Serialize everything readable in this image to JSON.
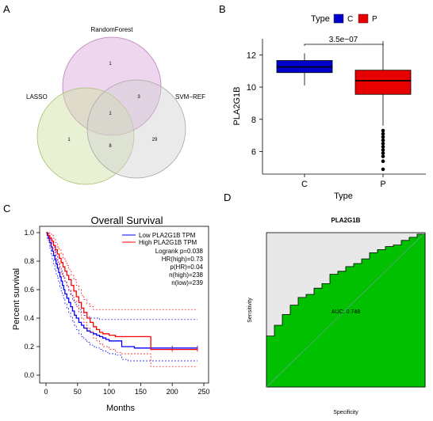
{
  "panels": {
    "A": "A",
    "B": "B",
    "C": "C",
    "D": "D"
  },
  "colors": {
    "rf": "#d9a3d9",
    "lasso": "#cfdfa0",
    "svm": "#d0d0d0",
    "box_c": "#0000cc",
    "box_p": "#e60000",
    "survival_low": "#0000ff",
    "survival_high": "#ff0000",
    "roc_fill": "#00c000",
    "roc_bg": "#e8e8e8"
  },
  "venn": {
    "sets": [
      "RandomForest",
      "LASSO",
      "SVM−REF"
    ],
    "regions": {
      "rf_only": "1",
      "rf_svm": "3",
      "all": "1",
      "lasso_only": "1",
      "lasso_svm": "8",
      "svm_only": "29"
    }
  },
  "chart_data": [
    {
      "panel": "B",
      "type": "box",
      "legend_title": "Type",
      "legend": [
        "C",
        "P"
      ],
      "xlabel": "Type",
      "ylabel": "PLA2G1B",
      "categories": [
        "C",
        "P"
      ],
      "yticks": [
        6,
        8,
        10,
        12
      ],
      "ylim": [
        4.6,
        13
      ],
      "pvalue": "3.5e−07",
      "boxes": [
        {
          "name": "C",
          "whisker_low": 10.1,
          "q1": 10.9,
          "median": 11.25,
          "q3": 11.65,
          "whisker_high": 12.1,
          "outliers": []
        },
        {
          "name": "P",
          "whisker_low": 7.6,
          "q1": 9.55,
          "median": 10.4,
          "q3": 11.05,
          "whisker_high": 12.85,
          "outliers": [
            7.3,
            7.1,
            6.9,
            6.7,
            6.5,
            6.3,
            6.1,
            5.9,
            5.7,
            5.4,
            4.9
          ]
        }
      ]
    },
    {
      "panel": "C",
      "type": "line",
      "title": "Overall Survival",
      "xlabel": "Months",
      "ylabel": "Percent survival",
      "xlim": [
        0,
        250
      ],
      "ylim": [
        0,
        1
      ],
      "xticks": [
        0,
        50,
        100,
        150,
        200,
        250
      ],
      "yticks": [
        0.0,
        0.2,
        0.4,
        0.6,
        0.8,
        1.0
      ],
      "legend": [
        "Low PLA2G1B TPM",
        "High PLA2G1B TPM"
      ],
      "stats": [
        "Logrank p=0.038",
        "HR(high)=0.73",
        "p(HR)=0.04",
        "n(high)=238",
        "n(low)=239"
      ],
      "series": [
        {
          "name": "Low PLA2G1B TPM",
          "x": [
            0,
            2,
            4,
            6,
            8,
            10,
            12,
            14,
            16,
            18,
            20,
            22,
            24,
            26,
            28,
            30,
            33,
            36,
            39,
            42,
            45,
            48,
            52,
            56,
            60,
            65,
            70,
            75,
            80,
            85,
            90,
            95,
            100,
            110,
            120,
            130,
            140,
            150,
            165,
            200,
            240
          ],
          "y": [
            1.0,
            0.98,
            0.96,
            0.93,
            0.9,
            0.87,
            0.84,
            0.81,
            0.78,
            0.75,
            0.72,
            0.69,
            0.66,
            0.63,
            0.6,
            0.57,
            0.54,
            0.51,
            0.48,
            0.45,
            0.42,
            0.4,
            0.37,
            0.35,
            0.33,
            0.31,
            0.3,
            0.29,
            0.28,
            0.27,
            0.26,
            0.25,
            0.24,
            0.24,
            0.2,
            0.2,
            0.19,
            0.19,
            0.19,
            0.19,
            0.19
          ],
          "upper": [
            1.0,
            1.0,
            0.99,
            0.97,
            0.95,
            0.92,
            0.9,
            0.87,
            0.84,
            0.81,
            0.79,
            0.76,
            0.73,
            0.7,
            0.68,
            0.65,
            0.62,
            0.59,
            0.56,
            0.53,
            0.51,
            0.49,
            0.46,
            0.44,
            0.42,
            0.41,
            0.4,
            0.4,
            0.4,
            0.39,
            0.39,
            0.39,
            0.39,
            0.39,
            0.39,
            0.39,
            0.39,
            0.39,
            0.39,
            0.39,
            0.39
          ],
          "lower": [
            1.0,
            0.96,
            0.93,
            0.89,
            0.85,
            0.81,
            0.78,
            0.74,
            0.71,
            0.68,
            0.65,
            0.62,
            0.59,
            0.56,
            0.53,
            0.5,
            0.47,
            0.44,
            0.41,
            0.38,
            0.35,
            0.32,
            0.29,
            0.27,
            0.25,
            0.23,
            0.21,
            0.2,
            0.19,
            0.18,
            0.17,
            0.16,
            0.15,
            0.14,
            0.11,
            0.1,
            0.1,
            0.1,
            0.1,
            0.1,
            0.1
          ]
        },
        {
          "name": "High PLA2G1B TPM",
          "x": [
            0,
            3,
            6,
            9,
            12,
            15,
            18,
            21,
            24,
            27,
            30,
            33,
            36,
            40,
            44,
            48,
            52,
            56,
            60,
            65,
            70,
            75,
            80,
            85,
            90,
            100,
            110,
            120,
            130,
            140,
            150,
            165,
            166,
            200,
            240
          ],
          "y": [
            1.0,
            0.98,
            0.96,
            0.94,
            0.91,
            0.88,
            0.85,
            0.82,
            0.79,
            0.76,
            0.73,
            0.7,
            0.67,
            0.63,
            0.59,
            0.55,
            0.51,
            0.47,
            0.44,
            0.4,
            0.37,
            0.34,
            0.32,
            0.3,
            0.29,
            0.28,
            0.27,
            0.27,
            0.27,
            0.27,
            0.27,
            0.27,
            0.18,
            0.18,
            0.18
          ],
          "upper": [
            1.0,
            1.0,
            0.99,
            0.98,
            0.96,
            0.93,
            0.9,
            0.88,
            0.85,
            0.82,
            0.8,
            0.77,
            0.74,
            0.7,
            0.67,
            0.63,
            0.6,
            0.56,
            0.53,
            0.5,
            0.48,
            0.46,
            0.46,
            0.46,
            0.46,
            0.46,
            0.46,
            0.46,
            0.46,
            0.46,
            0.46,
            0.46,
            0.46,
            0.46,
            0.46
          ],
          "lower": [
            1.0,
            0.95,
            0.92,
            0.89,
            0.86,
            0.82,
            0.79,
            0.75,
            0.72,
            0.69,
            0.66,
            0.63,
            0.6,
            0.56,
            0.52,
            0.48,
            0.44,
            0.4,
            0.37,
            0.33,
            0.3,
            0.26,
            0.24,
            0.22,
            0.2,
            0.18,
            0.16,
            0.15,
            0.15,
            0.15,
            0.15,
            0.15,
            0.06,
            0.06,
            0.06
          ]
        }
      ]
    },
    {
      "panel": "D",
      "type": "area",
      "title": "PLA2G1B",
      "xlabel": "Specificity",
      "ylabel": "Sensitivity",
      "annotation": "AUC: 0.748",
      "fpr": [
        0,
        0,
        0.05,
        0.05,
        0.1,
        0.1,
        0.15,
        0.15,
        0.2,
        0.2,
        0.25,
        0.25,
        0.3,
        0.3,
        0.35,
        0.35,
        0.4,
        0.4,
        0.45,
        0.45,
        0.5,
        0.5,
        0.55,
        0.55,
        0.6,
        0.6,
        0.65,
        0.65,
        0.7,
        0.7,
        0.75,
        0.75,
        0.8,
        0.8,
        0.85,
        0.85,
        0.9,
        0.9,
        0.95,
        0.95,
        1.0,
        1.0
      ],
      "tpr": [
        0,
        0.33,
        0.33,
        0.4,
        0.4,
        0.47,
        0.47,
        0.53,
        0.53,
        0.58,
        0.58,
        0.6,
        0.6,
        0.64,
        0.64,
        0.67,
        0.67,
        0.73,
        0.73,
        0.75,
        0.75,
        0.78,
        0.78,
        0.8,
        0.8,
        0.83,
        0.83,
        0.87,
        0.87,
        0.89,
        0.89,
        0.91,
        0.91,
        0.92,
        0.92,
        0.95,
        0.95,
        0.97,
        0.97,
        0.99,
        0.99,
        1.0
      ]
    }
  ]
}
